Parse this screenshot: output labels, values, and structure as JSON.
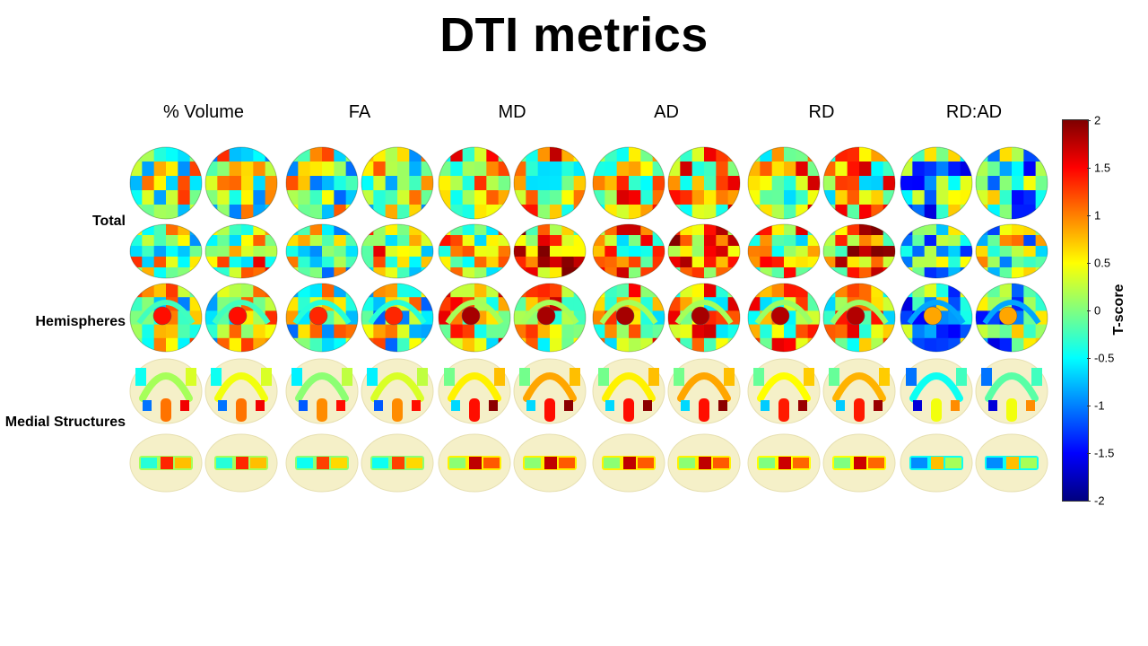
{
  "title": "DTI metrics",
  "columns": [
    "% Volume",
    "FA",
    "MD",
    "AD",
    "RD",
    "RD:AD"
  ],
  "rows": [
    "Total",
    "Hemispheres",
    "Medial Structures"
  ],
  "colorbar": {
    "label": "T-score",
    "ticks": [
      "2",
      "1.5",
      "1",
      "0.5",
      "0",
      "-0.5",
      "-1",
      "-1.5",
      "-2"
    ]
  },
  "metric_tone": [
    0.15,
    0.05,
    0.55,
    0.55,
    0.5,
    -0.45
  ]
}
